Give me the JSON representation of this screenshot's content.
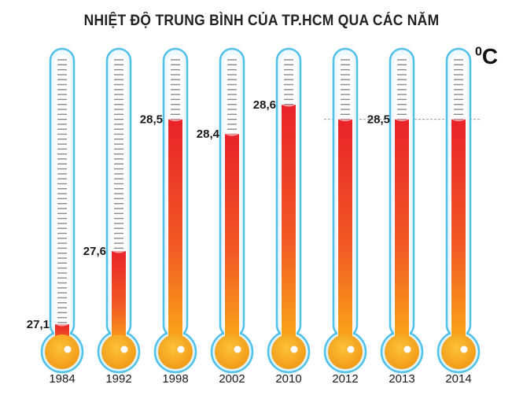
{
  "title": "NHIỆT ĐỘ TRUNG BÌNH CỦA TP.HCM QUA CÁC NĂM",
  "unit_label": "C",
  "unit_degree": "0",
  "chart_data": {
    "type": "bar",
    "title": "NHIỆT ĐỘ TRUNG BÌNH CỦA TP.HCM QUA CÁC NĂM",
    "xlabel": "",
    "ylabel": "°C",
    "categories": [
      "1984",
      "1992",
      "1998",
      "2002",
      "2010",
      "2012",
      "2013",
      "2014"
    ],
    "values": [
      27.1,
      27.6,
      28.5,
      28.4,
      28.6,
      28.5,
      28.5,
      28.5
    ],
    "value_labels": [
      "27,1",
      "27,6",
      "28,5",
      "28,4",
      "28,6",
      "",
      "28,5",
      ""
    ],
    "reference_line": 28.5,
    "ylim": [
      26.9,
      28.75
    ],
    "colors": {
      "tube_outline": "#4fc1e9",
      "tube_inner": "#dff3fb",
      "tick": "#8a8a8a",
      "mercury_top": "#e8232a",
      "mercury_bottom": "#fbb117",
      "bulb": "#f7a21b"
    }
  }
}
